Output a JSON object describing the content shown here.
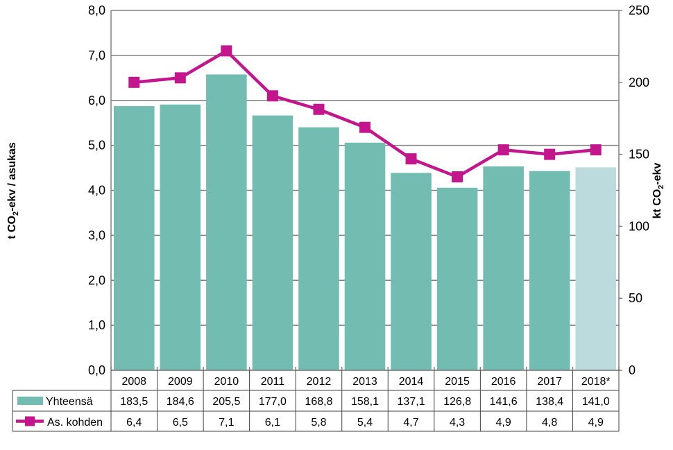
{
  "chart_data": {
    "type": "bar",
    "categories": [
      "2008",
      "2009",
      "2010",
      "2011",
      "2012",
      "2013",
      "2014",
      "2015",
      "2016",
      "2017",
      "2018*"
    ],
    "series": [
      {
        "name": "Yhteensä",
        "kind": "bar",
        "axis": "right",
        "color": "#72BCB2",
        "estimate_color": "#BCDBDC",
        "values": [
          183.5,
          184.6,
          205.5,
          177.0,
          168.8,
          158.1,
          137.1,
          126.8,
          141.6,
          138.4,
          141.0
        ],
        "labels": [
          "183,5",
          "184,6",
          "205,5",
          "177,0",
          "168,8",
          "158,1",
          "137,1",
          "126,8",
          "141,6",
          "138,4",
          "141,0"
        ]
      },
      {
        "name": "As. kohden",
        "kind": "line",
        "axis": "left",
        "color": "#C4168C",
        "values": [
          6.4,
          6.5,
          7.1,
          6.1,
          5.8,
          5.4,
          4.7,
          4.3,
          4.9,
          4.8,
          4.9
        ],
        "labels": [
          "6,4",
          "6,5",
          "7,1",
          "6,1",
          "5,8",
          "5,4",
          "4,7",
          "4,3",
          "4,9",
          "4,8",
          "4,9"
        ]
      }
    ],
    "y_left": {
      "label_main": "t CO",
      "label_sub": "2",
      "label_rest": "-ekv / asukas",
      "ylim": [
        0,
        8
      ],
      "ticks": [
        "0,0",
        "1,0",
        "2,0",
        "3,0",
        "4,0",
        "5,0",
        "6,0",
        "7,0",
        "8,0"
      ]
    },
    "y_right": {
      "label_main": "kt CO",
      "label_sub": "2",
      "label_rest": "-ekv",
      "ylim": [
        0,
        250
      ],
      "ticks": [
        "0",
        "50",
        "100",
        "150",
        "200",
        "250"
      ]
    },
    "grid": true,
    "legend": "data-table",
    "estimated_category": "2018*",
    "gridline_color": "#808080"
  }
}
